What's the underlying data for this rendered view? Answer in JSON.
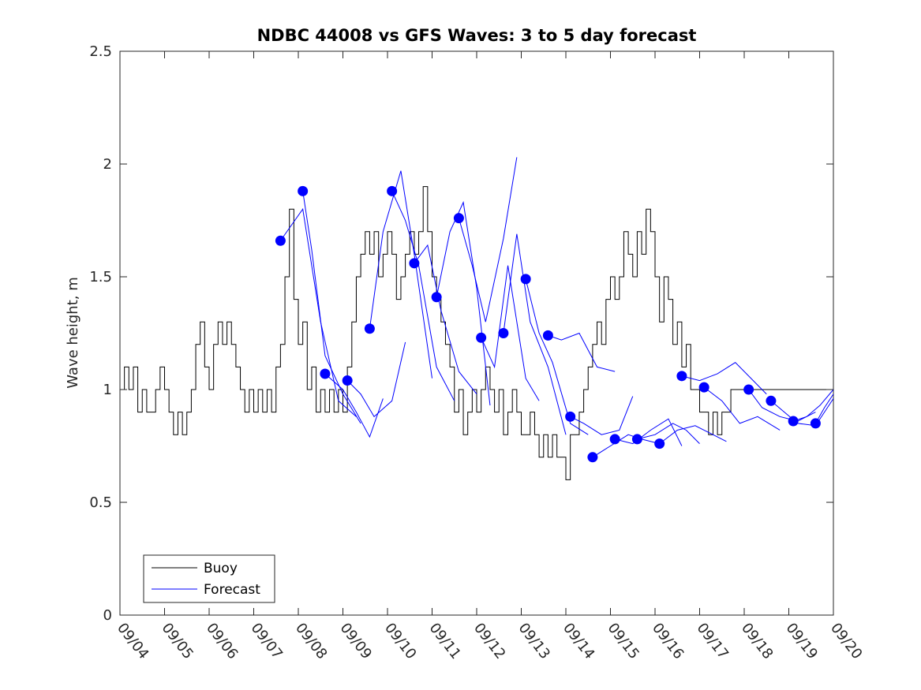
{
  "chart_data": {
    "type": "line",
    "title": "NDBC 44008 vs GFS Waves: 3 to 5 day forecast",
    "xlabel": "",
    "ylabel": "Wave height, m",
    "xlim": [
      0,
      16
    ],
    "ylim": [
      0,
      2.5
    ],
    "x_tick_labels": [
      "09/04",
      "09/05",
      "09/06",
      "09/07",
      "09/08",
      "09/09",
      "09/10",
      "09/11",
      "09/12",
      "09/13",
      "09/14",
      "09/15",
      "09/16",
      "09/17",
      "09/18",
      "09/19",
      "09/20"
    ],
    "y_ticks": [
      0,
      0.5,
      1,
      1.5,
      2,
      2.5
    ],
    "y_tick_labels": [
      "0",
      "0.5",
      "1",
      "1.5",
      "2",
      "2.5"
    ],
    "grid": false,
    "legend": {
      "position": "bottom-left",
      "entries": [
        "Buoy",
        "Forecast"
      ]
    },
    "colors": {
      "buoy": "#000000",
      "forecast": "#0000ff",
      "axis": "#262626"
    },
    "buoy": {
      "name": "Buoy",
      "x": [
        0.0,
        0.1,
        0.2,
        0.3,
        0.4,
        0.5,
        0.6,
        0.7,
        0.8,
        0.9,
        1.0,
        1.1,
        1.2,
        1.3,
        1.4,
        1.5,
        1.6,
        1.7,
        1.8,
        1.9,
        2.0,
        2.1,
        2.2,
        2.3,
        2.4,
        2.5,
        2.6,
        2.7,
        2.8,
        2.9,
        3.0,
        3.1,
        3.2,
        3.3,
        3.4,
        3.5,
        3.6,
        3.7,
        3.8,
        3.9,
        4.0,
        4.1,
        4.2,
        4.3,
        4.4,
        4.5,
        4.6,
        4.7,
        4.8,
        4.9,
        5.0,
        5.1,
        5.2,
        5.3,
        5.4,
        5.5,
        5.6,
        5.7,
        5.8,
        5.9,
        6.0,
        6.1,
        6.2,
        6.3,
        6.4,
        6.5,
        6.6,
        6.7,
        6.8,
        6.9,
        7.0,
        7.1,
        7.2,
        7.3,
        7.4,
        7.5,
        7.6,
        7.7,
        7.8,
        7.9,
        8.0,
        8.1,
        8.2,
        8.3,
        8.4,
        8.5,
        8.6,
        8.7,
        8.8,
        8.9,
        9.0,
        9.1,
        9.2,
        9.3,
        9.4,
        9.5,
        9.6,
        9.7,
        9.8,
        9.9,
        10.0,
        10.1,
        10.2,
        10.3,
        10.4,
        10.5,
        10.6,
        10.7,
        10.8,
        10.9,
        11.0,
        11.1,
        11.2,
        11.3,
        11.4,
        11.5,
        11.6,
        11.7,
        11.8,
        11.9,
        12.0,
        12.1,
        12.2,
        12.3,
        12.4,
        12.5,
        12.6,
        12.7,
        12.8,
        12.9,
        13.0,
        13.1,
        13.2,
        13.3,
        13.4,
        13.5,
        13.6,
        13.7,
        13.8,
        13.9,
        14.0,
        14.1,
        14.2,
        14.3,
        14.4,
        14.5,
        14.6,
        14.7,
        14.8,
        14.9,
        15.0,
        15.1,
        15.2,
        15.3,
        15.4,
        15.5,
        15.6,
        15.7,
        15.8,
        15.9,
        16.0
      ],
      "values": [
        1.0,
        1.1,
        1.0,
        1.1,
        0.9,
        1.0,
        0.9,
        0.9,
        1.0,
        1.1,
        1.0,
        0.9,
        0.8,
        0.9,
        0.8,
        0.9,
        1.0,
        1.2,
        1.3,
        1.1,
        1.0,
        1.2,
        1.3,
        1.2,
        1.3,
        1.2,
        1.1,
        1.0,
        0.9,
        1.0,
        0.9,
        1.0,
        0.9,
        1.0,
        0.9,
        1.1,
        1.2,
        1.5,
        1.8,
        1.4,
        1.2,
        1.3,
        1.0,
        1.1,
        0.9,
        1.0,
        0.9,
        1.0,
        0.9,
        1.0,
        0.9,
        1.1,
        1.3,
        1.5,
        1.6,
        1.7,
        1.6,
        1.7,
        1.5,
        1.6,
        1.7,
        1.6,
        1.4,
        1.5,
        1.6,
        1.7,
        1.6,
        1.7,
        1.9,
        1.7,
        1.5,
        1.4,
        1.3,
        1.2,
        1.1,
        0.9,
        1.0,
        0.8,
        0.9,
        1.0,
        0.9,
        1.0,
        1.1,
        1.0,
        0.9,
        1.0,
        0.8,
        0.9,
        1.0,
        0.9,
        0.8,
        0.8,
        0.9,
        0.8,
        0.7,
        0.8,
        0.7,
        0.8,
        0.7,
        0.7,
        0.6,
        0.8,
        0.8,
        0.9,
        1.0,
        1.1,
        1.2,
        1.3,
        1.2,
        1.4,
        1.5,
        1.4,
        1.5,
        1.7,
        1.6,
        1.5,
        1.7,
        1.6,
        1.8,
        1.7,
        1.5,
        1.3,
        1.5,
        1.4,
        1.2,
        1.3,
        1.1,
        1.2,
        1.0,
        1.0,
        0.9,
        0.9,
        0.8,
        0.9,
        0.8,
        0.9,
        0.9,
        1.0,
        1.0,
        1.0,
        1.0,
        1.0,
        1.0,
        1.0,
        1.0,
        1.0,
        1.0,
        1.0,
        1.0,
        1.0,
        1.0,
        1.0,
        1.0,
        1.0,
        1.0,
        1.0,
        1.0,
        1.0,
        1.0,
        1.0,
        1.0
      ]
    },
    "forecast_series": [
      {
        "name": "Forecast",
        "x": [
          3.6,
          4.1,
          4.5,
          4.9,
          5.3
        ],
        "values": [
          1.66,
          1.8,
          1.3,
          0.95,
          0.88
        ]
      },
      {
        "name": "Forecast",
        "x": [
          4.1,
          4.3,
          4.6,
          5.0,
          5.4
        ],
        "values": [
          1.88,
          1.62,
          1.15,
          0.98,
          0.85
        ]
      },
      {
        "name": "Forecast",
        "x": [
          4.6,
          5.0,
          5.3,
          5.6,
          5.9
        ],
        "values": [
          1.07,
          1.0,
          0.9,
          0.79,
          0.96
        ]
      },
      {
        "name": "Forecast",
        "x": [
          5.1,
          5.4,
          5.7,
          6.1,
          6.4
        ],
        "values": [
          1.04,
          0.98,
          0.88,
          0.95,
          1.21
        ]
      },
      {
        "name": "Forecast",
        "x": [
          5.6,
          5.9,
          6.3,
          6.6,
          7.0
        ],
        "values": [
          1.27,
          1.7,
          1.97,
          1.6,
          1.05
        ]
      },
      {
        "name": "Forecast",
        "x": [
          6.1,
          6.4,
          6.7,
          7.1,
          7.5
        ],
        "values": [
          1.88,
          1.75,
          1.55,
          1.1,
          0.95
        ]
      },
      {
        "name": "Forecast",
        "x": [
          6.6,
          6.9,
          7.2,
          7.6,
          8.0
        ],
        "values": [
          1.56,
          1.64,
          1.35,
          1.08,
          0.98
        ]
      },
      {
        "name": "Forecast",
        "x": [
          7.1,
          7.4,
          7.7,
          8.0,
          8.3
        ],
        "values": [
          1.41,
          1.7,
          1.83,
          1.45,
          0.93
        ]
      },
      {
        "name": "Forecast",
        "x": [
          7.6,
          7.9,
          8.2,
          8.6,
          8.9
        ],
        "values": [
          1.76,
          1.55,
          1.3,
          1.67,
          2.03
        ]
      },
      {
        "name": "Forecast",
        "x": [
          8.1,
          8.4,
          8.7,
          9.1,
          9.4
        ],
        "values": [
          1.23,
          1.1,
          1.55,
          1.05,
          0.95
        ]
      },
      {
        "name": "Forecast",
        "x": [
          8.6,
          8.9,
          9.2,
          9.6,
          10.0
        ],
        "values": [
          1.25,
          1.69,
          1.3,
          1.1,
          0.8
        ]
      },
      {
        "name": "Forecast",
        "x": [
          9.1,
          9.4,
          9.7,
          10.1,
          10.5
        ],
        "values": [
          1.49,
          1.25,
          1.12,
          0.85,
          0.8
        ]
      },
      {
        "name": "Forecast",
        "x": [
          9.6,
          9.9,
          10.3,
          10.7,
          11.1
        ],
        "values": [
          1.24,
          1.22,
          1.25,
          1.1,
          1.08
        ]
      },
      {
        "name": "Forecast",
        "x": [
          10.1,
          10.4,
          10.8,
          11.2,
          11.5
        ],
        "values": [
          0.88,
          0.85,
          0.8,
          0.82,
          0.97
        ]
      },
      {
        "name": "Forecast",
        "x": [
          10.6,
          11.0,
          11.4,
          11.7,
          12.1
        ],
        "values": [
          0.7,
          0.75,
          0.8,
          0.78,
          0.76
        ]
      },
      {
        "name": "Forecast",
        "x": [
          11.1,
          11.5,
          11.9,
          12.3,
          12.6
        ],
        "values": [
          0.78,
          0.76,
          0.82,
          0.87,
          0.75
        ]
      },
      {
        "name": "Forecast",
        "x": [
          11.6,
          12.0,
          12.4,
          12.7,
          13.0
        ],
        "values": [
          0.78,
          0.8,
          0.85,
          0.82,
          0.76
        ]
      },
      {
        "name": "Forecast",
        "x": [
          12.1,
          12.5,
          12.9,
          13.3,
          13.6
        ],
        "values": [
          0.76,
          0.82,
          0.84,
          0.8,
          0.77
        ]
      },
      {
        "name": "Forecast",
        "x": [
          12.6,
          13.0,
          13.4,
          13.8,
          14.5
        ],
        "values": [
          1.06,
          1.04,
          1.07,
          1.12,
          0.98
        ]
      },
      {
        "name": "Forecast",
        "x": [
          13.1,
          13.5,
          13.9,
          14.3,
          14.8
        ],
        "values": [
          1.01,
          0.95,
          0.85,
          0.88,
          0.82
        ]
      },
      {
        "name": "Forecast",
        "x": [
          14.1,
          14.4,
          14.8,
          15.2,
          15.6
        ],
        "values": [
          1.0,
          0.92,
          0.88,
          0.86,
          0.9
        ]
      },
      {
        "name": "Forecast",
        "x": [
          14.6,
          14.9,
          15.2,
          15.6,
          16.0
        ],
        "values": [
          0.95,
          0.9,
          0.85,
          0.84,
          0.96
        ]
      },
      {
        "name": "Forecast",
        "x": [
          15.1,
          15.4,
          15.7,
          16.0
        ],
        "values": [
          0.86,
          0.88,
          0.93,
          1.0
        ]
      },
      {
        "name": "Forecast",
        "x": [
          15.6,
          15.8,
          16.0
        ],
        "values": [
          0.85,
          0.92,
          0.98
        ]
      }
    ]
  }
}
